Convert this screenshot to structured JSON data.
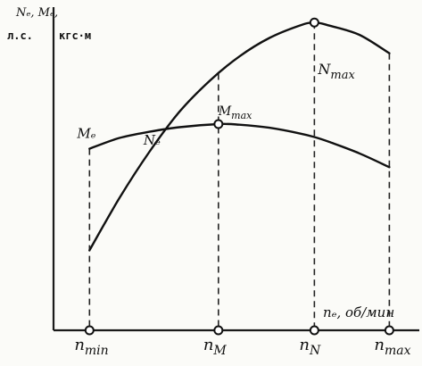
{
  "chart_data": {
    "type": "line",
    "y_axis_label_line1": "Nₑ, Mₑ,",
    "y_axis_unit_left": "л.с.",
    "y_axis_unit_right": "кгс·м",
    "x_axis_label": "nₑ, об/мин",
    "x_ticks": [
      {
        "key": "nmin",
        "label": "n_min",
        "base": "n",
        "sub": "min",
        "x": 0.0
      },
      {
        "key": "nM",
        "label": "n_M",
        "base": "n",
        "sub": "M",
        "x": 0.43
      },
      {
        "key": "nN",
        "label": "n_N",
        "base": "n",
        "sub": "N",
        "x": 0.75
      },
      {
        "key": "nmax",
        "label": "n_max",
        "base": "n",
        "sub": "max",
        "x": 1.0
      }
    ],
    "xlim": [
      -0.12,
      1.1
    ],
    "ylim": [
      0,
      1.05
    ],
    "grid": false,
    "series": [
      {
        "name": "Nₑ",
        "x": [
          0.0,
          0.1,
          0.2,
          0.3,
          0.4,
          0.5,
          0.6,
          0.7,
          0.75,
          0.8,
          0.9,
          1.0
        ],
        "y": [
          0.26,
          0.43,
          0.58,
          0.71,
          0.81,
          0.89,
          0.95,
          0.99,
          1.0,
          0.99,
          0.96,
          0.9
        ]
      },
      {
        "name": "Mₑ",
        "x": [
          0.0,
          0.1,
          0.2,
          0.3,
          0.43,
          0.5,
          0.6,
          0.7,
          0.75,
          0.8,
          0.9,
          1.0
        ],
        "y": [
          0.59,
          0.625,
          0.645,
          0.66,
          0.67,
          0.668,
          0.658,
          0.64,
          0.628,
          0.612,
          0.575,
          0.53
        ]
      }
    ],
    "annotations": [
      {
        "key": "Nmax",
        "base": "N",
        "sub": "max",
        "at_series": "Nₑ",
        "x": 0.75
      },
      {
        "key": "Mmax",
        "base": "M",
        "sub": "max",
        "at_series": "Mₑ",
        "x": 0.43
      }
    ]
  }
}
